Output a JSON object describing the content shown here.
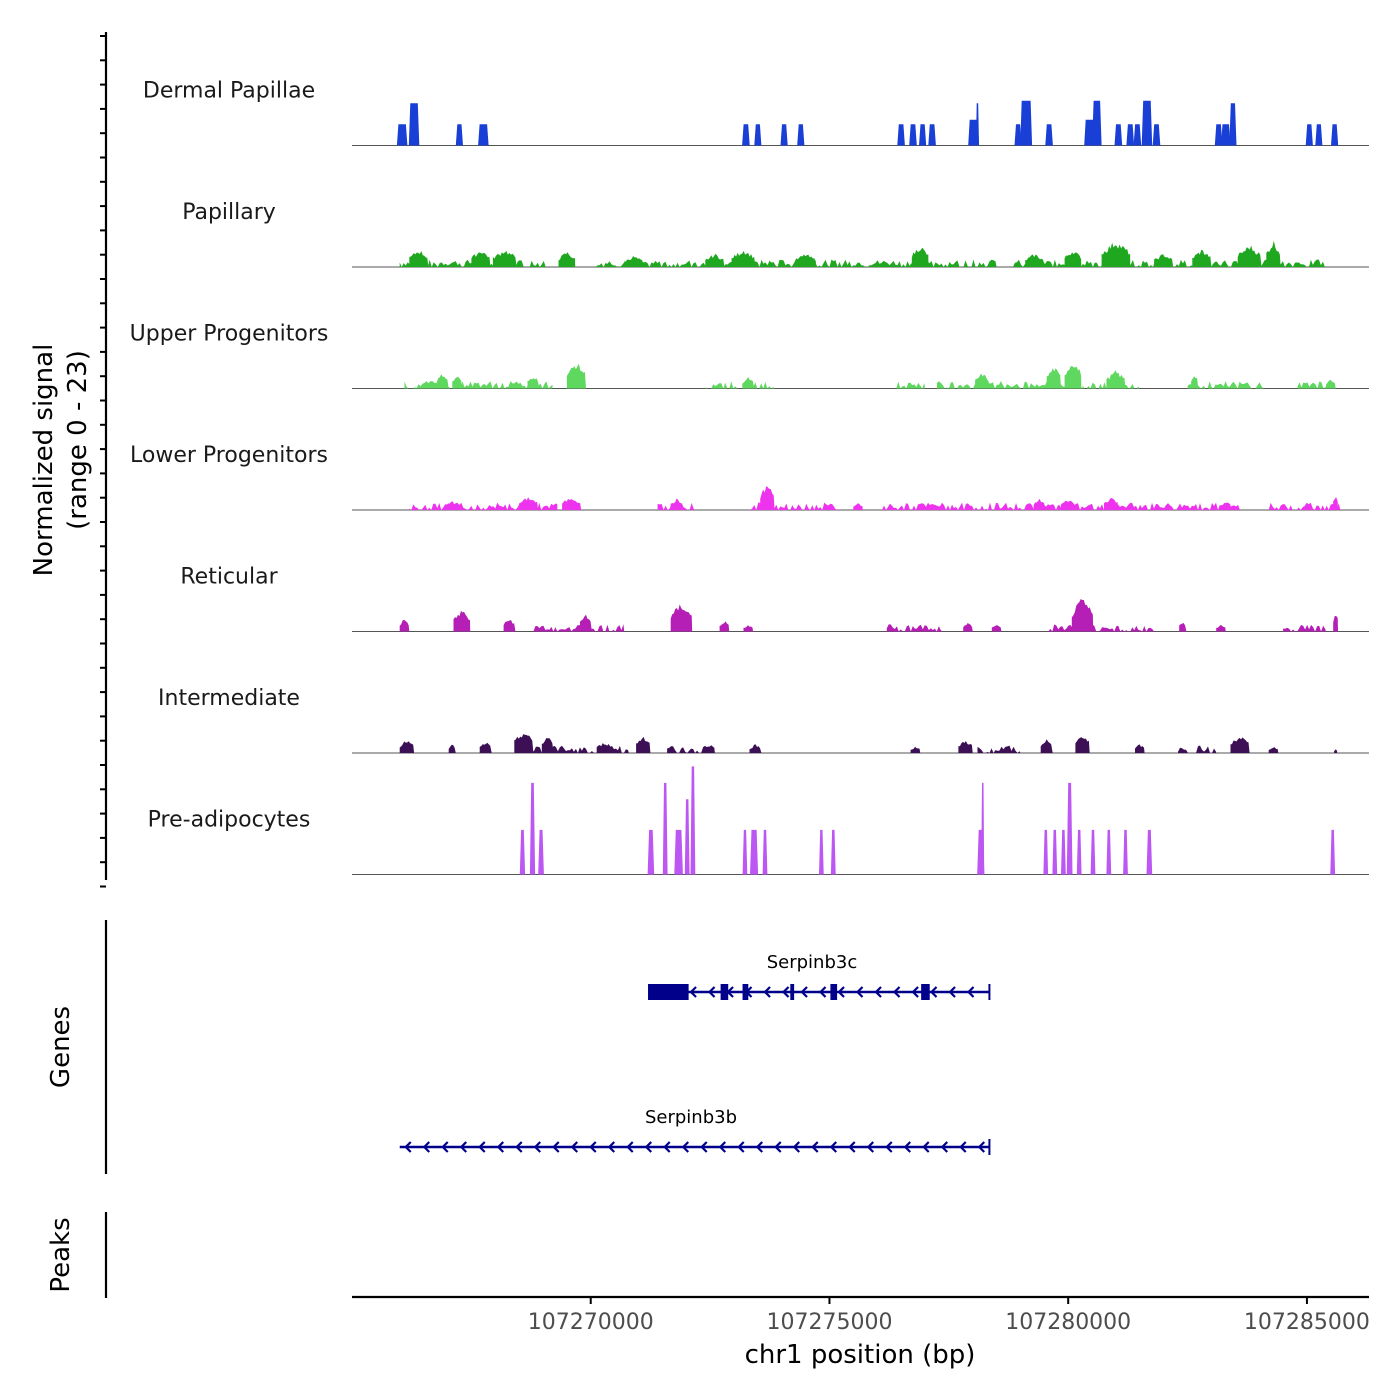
{
  "chart_data": {
    "type": "area",
    "subtype": "genome-coverage-track",
    "chromosome": "chr1",
    "x_range": [
      107265000,
      107286300
    ],
    "x_ticks": [
      107270000,
      107275000,
      107280000,
      107285000
    ],
    "xlabel": "chr1 position (bp)",
    "ylabel": "Normalized signal",
    "ylabel_sub": "(range 0 - 23)",
    "ylim": [
      0,
      23
    ],
    "tracks": [
      {
        "name": "Dermal Papillae",
        "color": "#1a3fd6",
        "peaks": [
          [
            107266050,
            4.5,
            220
          ],
          [
            107266300,
            9,
            220
          ],
          [
            107267250,
            4.5,
            150
          ],
          [
            107267750,
            4.5,
            220
          ],
          [
            107273250,
            4.5,
            160
          ],
          [
            107273500,
            4.5,
            150
          ],
          [
            107274050,
            4.5,
            150
          ],
          [
            107274400,
            4.5,
            150
          ],
          [
            107276500,
            4.5,
            160
          ],
          [
            107276750,
            4.5,
            160
          ],
          [
            107276950,
            4.5,
            150
          ],
          [
            107277150,
            4.5,
            160
          ],
          [
            107278020,
            5.5,
            230
          ],
          [
            107278100,
            9,
            60
          ],
          [
            107278950,
            4.5,
            150
          ],
          [
            107279120,
            9.5,
            250
          ],
          [
            107279600,
            4.5,
            160
          ],
          [
            107280450,
            5.5,
            230
          ],
          [
            107280600,
            9.5,
            200
          ],
          [
            107281050,
            4.5,
            160
          ],
          [
            107281300,
            4.5,
            160
          ],
          [
            107281450,
            4.5,
            160
          ],
          [
            107281650,
            9.5,
            220
          ],
          [
            107281850,
            4.5,
            160
          ],
          [
            107283150,
            4.5,
            160
          ],
          [
            107283300,
            4.5,
            200
          ],
          [
            107283450,
            9,
            150
          ],
          [
            107285050,
            4.5,
            150
          ],
          [
            107285250,
            4.5,
            150
          ],
          [
            107285580,
            4.5,
            150
          ]
        ]
      },
      {
        "name": "Papillary",
        "color": "#1fa81f",
        "regions": [
          [
            107266000,
            107269100
          ],
          [
            107270100,
            107278500
          ],
          [
            107278800,
            107285400
          ]
        ],
        "peaks": [
          [
            107266400,
            4,
            400
          ],
          [
            107267700,
            4,
            400
          ],
          [
            107268200,
            4,
            500
          ],
          [
            107269500,
            3.5,
            350
          ],
          [
            107270900,
            2.5,
            400
          ],
          [
            107272600,
            3,
            400
          ],
          [
            107273200,
            4,
            500
          ],
          [
            107274500,
            3,
            450
          ],
          [
            107276900,
            5,
            350
          ],
          [
            107279300,
            3,
            400
          ],
          [
            107280100,
            4,
            350
          ],
          [
            107281000,
            6,
            600
          ],
          [
            107282000,
            3,
            400
          ],
          [
            107282800,
            4,
            400
          ],
          [
            107283800,
            5,
            500
          ],
          [
            107284300,
            6,
            300
          ]
        ]
      },
      {
        "name": "Upper Progenitors",
        "color": "#5ed85e",
        "regions": [
          [
            107266100,
            107269200
          ],
          [
            107272400,
            107273850
          ],
          [
            107276400,
            107277000
          ],
          [
            107277250,
            107280300
          ],
          [
            107280300,
            107281500
          ],
          [
            107282500,
            107284100
          ],
          [
            107284800,
            107285600
          ]
        ],
        "peaks": [
          [
            107266900,
            3.5,
            250
          ],
          [
            107267200,
            3,
            200
          ],
          [
            107268800,
            3,
            250
          ],
          [
            107269700,
            6,
            400
          ],
          [
            107273300,
            2.5,
            250
          ],
          [
            107278200,
            3.5,
            300
          ],
          [
            107279700,
            5,
            300
          ],
          [
            107280100,
            6.5,
            350
          ],
          [
            107281000,
            4,
            400
          ],
          [
            107282650,
            3.5,
            150
          ],
          [
            107285500,
            2,
            200
          ]
        ]
      },
      {
        "name": "Lower Progenitors",
        "color": "#ee33ee",
        "regions": [
          [
            107266200,
            107269300
          ],
          [
            107271400,
            107272200
          ],
          [
            107273300,
            107275200
          ],
          [
            107276100,
            107283600
          ],
          [
            107284200,
            107285700
          ]
        ],
        "peaks": [
          [
            107267100,
            2,
            300
          ],
          [
            107268700,
            3,
            400
          ],
          [
            107269600,
            3,
            400
          ],
          [
            107271800,
            2.5,
            250
          ],
          [
            107273700,
            6,
            300
          ],
          [
            107275600,
            1.5,
            200
          ],
          [
            107279400,
            2.5,
            250
          ],
          [
            107280000,
            2.5,
            300
          ],
          [
            107280900,
            3,
            300
          ],
          [
            107283300,
            2,
            250
          ],
          [
            107285600,
            3.5,
            100
          ]
        ]
      },
      {
        "name": "Reticular",
        "color": "#b51fb5",
        "regions": [
          [
            107268800,
            107270700
          ],
          [
            107276200,
            107277400
          ],
          [
            107279500,
            107281800
          ],
          [
            107284500,
            107285400
          ]
        ],
        "peaks": [
          [
            107266100,
            3,
            200
          ],
          [
            107267300,
            5,
            350
          ],
          [
            107268300,
            3,
            250
          ],
          [
            107269900,
            4,
            250
          ],
          [
            107271900,
            6.5,
            450
          ],
          [
            107272800,
            2.5,
            200
          ],
          [
            107273300,
            1.5,
            200
          ],
          [
            107277900,
            2,
            200
          ],
          [
            107278500,
            1.5,
            200
          ],
          [
            107280300,
            7.5,
            450
          ],
          [
            107282400,
            2.5,
            150
          ],
          [
            107283200,
            1.5,
            200
          ],
          [
            107285600,
            5,
            100
          ]
        ]
      },
      {
        "name": "Intermediate",
        "color": "#3d1056",
        "regions": [
          [
            107268600,
            107270800
          ],
          [
            107271600,
            107272500
          ],
          [
            107278100,
            107279000
          ],
          [
            107282300,
            107283100
          ]
        ],
        "peaks": [
          [
            107266150,
            3,
            300
          ],
          [
            107267100,
            2,
            150
          ],
          [
            107267800,
            2.5,
            250
          ],
          [
            107268600,
            5,
            400
          ],
          [
            107269100,
            4,
            250
          ],
          [
            107270300,
            2.5,
            350
          ],
          [
            107271100,
            4,
            300
          ],
          [
            107272500,
            2,
            200
          ],
          [
            107273450,
            2,
            250
          ],
          [
            107276800,
            1.5,
            200
          ],
          [
            107277850,
            3,
            300
          ],
          [
            107279550,
            3,
            250
          ],
          [
            107280300,
            4.5,
            300
          ],
          [
            107281500,
            2,
            200
          ],
          [
            107283600,
            4,
            400
          ],
          [
            107284300,
            1.5,
            200
          ],
          [
            107285600,
            1,
            60
          ]
        ]
      },
      {
        "name": "Pre-adipocytes",
        "color": "#bc57f3",
        "peaks": [
          [
            107268570,
            9.5,
            110
          ],
          [
            107268780,
            19.5,
            110
          ],
          [
            107268960,
            9.5,
            120
          ],
          [
            107271260,
            9.5,
            140
          ],
          [
            107271560,
            19.5,
            100
          ],
          [
            107271840,
            9.5,
            180
          ],
          [
            107272020,
            16,
            100
          ],
          [
            107272140,
            23,
            100
          ],
          [
            107273230,
            9.5,
            100
          ],
          [
            107273420,
            9.5,
            170
          ],
          [
            107273650,
            9.5,
            100
          ],
          [
            107274830,
            9.5,
            100
          ],
          [
            107275080,
            9.5,
            100
          ],
          [
            107278170,
            9.5,
            150
          ],
          [
            107278210,
            19.5,
            60
          ],
          [
            107279530,
            9.5,
            100
          ],
          [
            107279720,
            9.5,
            100
          ],
          [
            107279900,
            9.5,
            100
          ],
          [
            107280030,
            19.5,
            120
          ],
          [
            107280230,
            9.5,
            100
          ],
          [
            107280520,
            9.5,
            100
          ],
          [
            107280850,
            9.5,
            100
          ],
          [
            107281200,
            9.5,
            100
          ],
          [
            107281700,
            9.5,
            120
          ],
          [
            107285540,
            9.5,
            100
          ]
        ]
      }
    ],
    "genes_label": "Genes",
    "genes": [
      {
        "name": "Serpinb3c",
        "start": 107271200,
        "end": 107278350,
        "strand": "-",
        "exons": [
          [
            107271200,
            107272050
          ],
          [
            107272720,
            107272880
          ],
          [
            107273180,
            107273300
          ],
          [
            107274180,
            107274260
          ],
          [
            107275020,
            107275160
          ],
          [
            107276920,
            107277100
          ]
        ]
      },
      {
        "name": "Serpinb3b",
        "start": 107266000,
        "end": 107278350,
        "strand": "-",
        "exons": []
      }
    ],
    "peaks_label": "Peaks",
    "peak_regions": []
  }
}
